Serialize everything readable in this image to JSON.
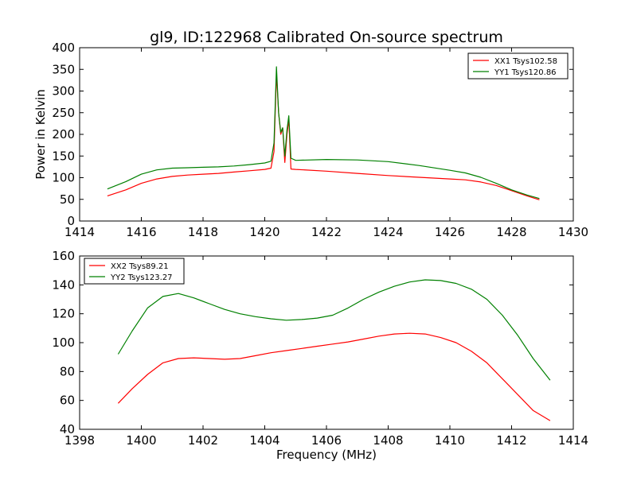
{
  "figure": {
    "title": "gl9, ID:122968 Calibrated On-source spectrum",
    "ylabel": "Power in Kelvin",
    "xlabel": "Frequency (MHz)"
  },
  "chart_data": [
    {
      "type": "line",
      "title": "gl9, ID:122968 Calibrated On-source spectrum",
      "xlabel": "",
      "ylabel": "Power in Kelvin",
      "xlim": [
        1414,
        1430
      ],
      "ylim": [
        0,
        400
      ],
      "xticks": [
        1414,
        1416,
        1418,
        1420,
        1422,
        1424,
        1426,
        1428,
        1430
      ],
      "yticks": [
        0,
        50,
        100,
        150,
        200,
        250,
        300,
        350,
        400
      ],
      "legend_position": "top-right",
      "grid": false,
      "series": [
        {
          "name": "XX1 Tsys102.58",
          "color": "#ff0000",
          "points": [
            [
              1414.9,
              58
            ],
            [
              1415.5,
              72
            ],
            [
              1416.0,
              87
            ],
            [
              1416.5,
              97
            ],
            [
              1417.0,
              103
            ],
            [
              1417.5,
              106
            ],
            [
              1418.0,
              108
            ],
            [
              1418.5,
              110
            ],
            [
              1419.0,
              113
            ],
            [
              1419.5,
              116
            ],
            [
              1420.0,
              119
            ],
            [
              1420.2,
              122
            ],
            [
              1420.3,
              160
            ],
            [
              1420.38,
              340
            ],
            [
              1420.45,
              250
            ],
            [
              1420.52,
              200
            ],
            [
              1420.58,
              215
            ],
            [
              1420.65,
              135
            ],
            [
              1420.72,
              200
            ],
            [
              1420.78,
              235
            ],
            [
              1420.85,
              120
            ],
            [
              1421.0,
              119
            ],
            [
              1422.0,
              115
            ],
            [
              1423.0,
              110
            ],
            [
              1424.0,
              105
            ],
            [
              1425.0,
              101
            ],
            [
              1426.0,
              97
            ],
            [
              1426.5,
              95
            ],
            [
              1427.0,
              90
            ],
            [
              1427.5,
              82
            ],
            [
              1428.0,
              70
            ],
            [
              1428.5,
              58
            ],
            [
              1428.9,
              49
            ]
          ]
        },
        {
          "name": "YY1 Tsys120.86",
          "color": "#008000",
          "points": [
            [
              1414.9,
              74
            ],
            [
              1415.5,
              91
            ],
            [
              1416.0,
              108
            ],
            [
              1416.5,
              118
            ],
            [
              1417.0,
              122
            ],
            [
              1417.5,
              123
            ],
            [
              1418.0,
              124
            ],
            [
              1418.5,
              125
            ],
            [
              1419.0,
              127
            ],
            [
              1419.5,
              130
            ],
            [
              1420.0,
              134
            ],
            [
              1420.2,
              138
            ],
            [
              1420.3,
              180
            ],
            [
              1420.38,
              356
            ],
            [
              1420.45,
              250
            ],
            [
              1420.52,
              205
            ],
            [
              1420.58,
              215
            ],
            [
              1420.65,
              150
            ],
            [
              1420.72,
              210
            ],
            [
              1420.78,
              243
            ],
            [
              1420.85,
              145
            ],
            [
              1421.0,
              140
            ],
            [
              1422.0,
              142
            ],
            [
              1423.0,
              141
            ],
            [
              1424.0,
              137
            ],
            [
              1425.0,
              128
            ],
            [
              1426.0,
              117
            ],
            [
              1426.5,
              111
            ],
            [
              1427.0,
              101
            ],
            [
              1427.5,
              87
            ],
            [
              1428.0,
              72
            ],
            [
              1428.5,
              60
            ],
            [
              1428.9,
              52
            ]
          ]
        }
      ]
    },
    {
      "type": "line",
      "title": "",
      "xlabel": "Frequency (MHz)",
      "ylabel": "",
      "xlim": [
        1398,
        1414
      ],
      "ylim": [
        40,
        160
      ],
      "xticks": [
        1398,
        1400,
        1402,
        1404,
        1406,
        1408,
        1410,
        1412,
        1414
      ],
      "yticks": [
        40,
        60,
        80,
        100,
        120,
        140,
        160
      ],
      "legend_position": "top-left",
      "grid": false,
      "series": [
        {
          "name": "XX2 Tsys89.21",
          "color": "#ff0000",
          "points": [
            [
              1399.25,
              58
            ],
            [
              1399.7,
              68
            ],
            [
              1400.2,
              78
            ],
            [
              1400.7,
              86
            ],
            [
              1401.2,
              89
            ],
            [
              1401.7,
              89.5
            ],
            [
              1402.2,
              89
            ],
            [
              1402.7,
              88.5
            ],
            [
              1403.2,
              89
            ],
            [
              1403.7,
              91
            ],
            [
              1404.2,
              93
            ],
            [
              1404.7,
              94.5
            ],
            [
              1405.2,
              96
            ],
            [
              1405.7,
              97.5
            ],
            [
              1406.2,
              99
            ],
            [
              1406.7,
              100.5
            ],
            [
              1407.2,
              102.5
            ],
            [
              1407.7,
              104.5
            ],
            [
              1408.2,
              106
            ],
            [
              1408.7,
              106.5
            ],
            [
              1409.2,
              106
            ],
            [
              1409.7,
              103.5
            ],
            [
              1410.2,
              100
            ],
            [
              1410.7,
              94
            ],
            [
              1411.2,
              86
            ],
            [
              1411.7,
              75
            ],
            [
              1412.2,
              64
            ],
            [
              1412.7,
              53
            ],
            [
              1413.25,
              46
            ]
          ]
        },
        {
          "name": "YY2 Tsys123.27",
          "color": "#008000",
          "points": [
            [
              1399.25,
              92
            ],
            [
              1399.7,
              108
            ],
            [
              1400.2,
              124
            ],
            [
              1400.7,
              132
            ],
            [
              1401.2,
              134
            ],
            [
              1401.7,
              131
            ],
            [
              1402.2,
              127
            ],
            [
              1402.7,
              123
            ],
            [
              1403.2,
              120
            ],
            [
              1403.7,
              118
            ],
            [
              1404.2,
              116.5
            ],
            [
              1404.7,
              115.5
            ],
            [
              1405.2,
              116
            ],
            [
              1405.7,
              117
            ],
            [
              1406.2,
              119
            ],
            [
              1406.7,
              124
            ],
            [
              1407.2,
              130
            ],
            [
              1407.7,
              135
            ],
            [
              1408.2,
              139
            ],
            [
              1408.7,
              142
            ],
            [
              1409.2,
              143.5
            ],
            [
              1409.7,
              143
            ],
            [
              1410.2,
              141
            ],
            [
              1410.7,
              137
            ],
            [
              1411.2,
              130
            ],
            [
              1411.7,
              119
            ],
            [
              1412.2,
              105
            ],
            [
              1412.7,
              89
            ],
            [
              1413.25,
              74
            ]
          ]
        }
      ]
    }
  ]
}
